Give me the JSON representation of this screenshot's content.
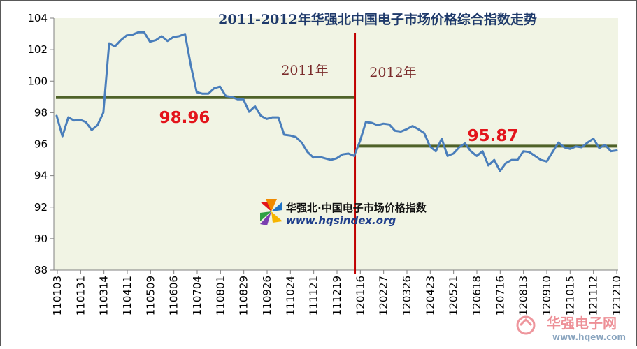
{
  "chart_data": {
    "type": "line",
    "title": "2011-2012年华强北中国电子市场价格综合指数走势",
    "ylim": [
      88,
      104
    ],
    "yticks": [
      88,
      90,
      92,
      94,
      96,
      98,
      100,
      102,
      104
    ],
    "x_tick_labels": [
      "110103",
      "110131",
      "110314",
      "110411",
      "110509",
      "110606",
      "110704",
      "110801",
      "110829",
      "110926",
      "111024",
      "111121",
      "111219",
      "120116",
      "120227",
      "120326",
      "120423",
      "120521",
      "120618",
      "120716",
      "120813",
      "120910",
      "121015",
      "121112",
      "121210"
    ],
    "series": [
      {
        "values": [
          97.8,
          96.5,
          97.7,
          97.5,
          97.55,
          97.4,
          96.9,
          97.2,
          98.0,
          102.4,
          102.2,
          102.6,
          102.9,
          102.95,
          103.1,
          103.1,
          102.5,
          102.6,
          102.85,
          102.55,
          102.8,
          102.85,
          103.0,
          101.0,
          99.3,
          99.2,
          99.2,
          99.55,
          99.65,
          99.05,
          99.0,
          98.85,
          98.85,
          98.05,
          98.4,
          97.8,
          97.6,
          97.7,
          97.7,
          96.6,
          96.55,
          96.45,
          96.1,
          95.5,
          95.15,
          95.2,
          95.1,
          95.0,
          95.1,
          95.35,
          95.4,
          95.25,
          96.2,
          97.4,
          97.35,
          97.2,
          97.3,
          97.25,
          96.85,
          96.8,
          96.95,
          97.15,
          96.95,
          96.7,
          95.85,
          95.55,
          96.35,
          95.25,
          95.4,
          95.8,
          96.05,
          95.55,
          95.25,
          95.55,
          94.65,
          95.0,
          94.3,
          94.8,
          95.0,
          95.0,
          95.55,
          95.5,
          95.25,
          95.0,
          94.9,
          95.5,
          96.1,
          95.8,
          95.7,
          95.85,
          95.8,
          96.1,
          96.35,
          95.75,
          95.95,
          95.55,
          95.6
        ]
      }
    ],
    "averages": [
      {
        "label": "98.96",
        "value": 98.96
      },
      {
        "label": "95.87",
        "value": 95.87
      }
    ],
    "year_labels": [
      "2011年",
      "2012年"
    ],
    "divider_after_index": 51,
    "grid": false,
    "colors": {
      "line": "#4a7ebb",
      "average": "#4f6228",
      "divider": "#c00000",
      "plot_bg": "#f1f4e4",
      "avg_text": "#e3141b"
    }
  },
  "logo": {
    "name": "华强北·中国电子市场价格指数",
    "url": "www.hqsindex.org"
  },
  "watermark": {
    "name": "华强电子网",
    "url": "www.hqew.com"
  }
}
